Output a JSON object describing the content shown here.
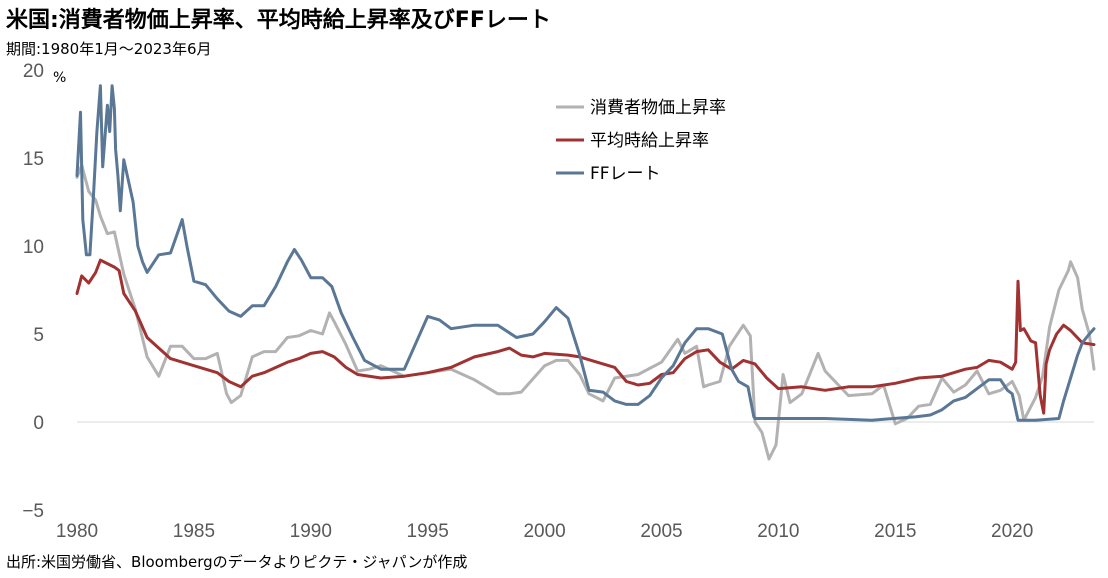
{
  "title": "米国:消費者物価上昇率、平均時給上昇率及びFFレート",
  "subtitle": "期間:1980年1月〜2023年6月",
  "source": "出所:米国労働省、Bloombergのデータよりピクテ・ジャパンが作成",
  "colors": {
    "cpi": "#b2b2b2",
    "wage": "#a03232",
    "ff": "#5a7796",
    "negative_tick": "#cc0000",
    "zero_line": "#d9d9d9"
  },
  "chart_data": {
    "type": "line",
    "ylabel": "%",
    "ylim": [
      -5,
      20
    ],
    "xlim": [
      1980,
      2023.5
    ],
    "yticks": [
      {
        "value": 20,
        "label": "20"
      },
      {
        "value": 15,
        "label": "15"
      },
      {
        "value": 10,
        "label": "10"
      },
      {
        "value": 5,
        "label": "5"
      },
      {
        "value": 0,
        "label": "0"
      },
      {
        "value": -5,
        "label": "−5"
      }
    ],
    "xticks": [
      {
        "value": 1980,
        "label": "1980"
      },
      {
        "value": 1985,
        "label": "1985"
      },
      {
        "value": 1990,
        "label": "1990"
      },
      {
        "value": 1995,
        "label": "1995"
      },
      {
        "value": 2000,
        "label": "2000"
      },
      {
        "value": 2005,
        "label": "2005"
      },
      {
        "value": 2010,
        "label": "2010"
      },
      {
        "value": 2015,
        "label": "2015"
      },
      {
        "value": 2020,
        "label": "2020"
      }
    ],
    "grid": false,
    "legend_position": "top-right",
    "series": [
      {
        "key": "cpi",
        "name": "消費者物価上昇率",
        "x": [
          1980.0,
          1980.2,
          1980.5,
          1980.8,
          1981.0,
          1981.3,
          1981.6,
          1982.0,
          1982.5,
          1983.0,
          1983.5,
          1984.0,
          1984.5,
          1985.0,
          1985.5,
          1986.0,
          1986.4,
          1986.6,
          1987.0,
          1987.5,
          1988.0,
          1988.5,
          1989.0,
          1989.5,
          1990.0,
          1990.5,
          1990.8,
          1991.0,
          1991.5,
          1992.0,
          1992.5,
          1993.0,
          1994.0,
          1995.0,
          1996.0,
          1997.0,
          1998.0,
          1998.5,
          1999.0,
          2000.0,
          2000.5,
          2001.0,
          2001.5,
          2001.9,
          2002.5,
          2003.0,
          2004.0,
          2005.0,
          2005.7,
          2006.0,
          2006.5,
          2006.8,
          2007.0,
          2007.5,
          2007.9,
          2008.5,
          2008.8,
          2009.0,
          2009.3,
          2009.6,
          2009.9,
          2010.2,
          2010.5,
          2011.0,
          2011.7,
          2012.0,
          2013.0,
          2014.0,
          2014.5,
          2015.0,
          2015.5,
          2016.0,
          2016.5,
          2017.0,
          2017.5,
          2018.0,
          2018.5,
          2019.0,
          2019.5,
          2020.0,
          2020.3,
          2020.5,
          2021.0,
          2021.3,
          2021.6,
          2022.0,
          2022.4,
          2022.5,
          2022.8,
          2023.0,
          2023.3,
          2023.5
        ],
        "y": [
          13.9,
          14.6,
          13.1,
          12.6,
          11.7,
          10.7,
          10.8,
          8.4,
          6.4,
          3.7,
          2.6,
          4.3,
          4.3,
          3.6,
          3.6,
          3.9,
          1.6,
          1.1,
          1.5,
          3.7,
          4.0,
          4.0,
          4.8,
          4.9,
          5.2,
          5.0,
          6.2,
          5.7,
          4.4,
          2.9,
          3.0,
          3.2,
          2.6,
          2.8,
          3.0,
          2.4,
          1.6,
          1.6,
          1.7,
          3.2,
          3.5,
          3.5,
          2.7,
          1.6,
          1.2,
          2.5,
          2.7,
          3.4,
          4.7,
          3.9,
          4.3,
          2.0,
          2.1,
          2.3,
          4.3,
          5.5,
          4.9,
          0.0,
          -0.6,
          -2.1,
          -1.3,
          2.7,
          1.1,
          1.6,
          3.9,
          2.9,
          1.5,
          1.6,
          2.1,
          -0.1,
          0.2,
          0.9,
          1.0,
          2.5,
          1.7,
          2.1,
          2.9,
          1.6,
          1.8,
          2.3,
          1.5,
          0.1,
          1.4,
          2.6,
          5.4,
          7.5,
          8.6,
          9.1,
          8.2,
          6.4,
          5.0,
          3.0
        ]
      },
      {
        "key": "wage",
        "name": "平均時給上昇率",
        "x": [
          1980.0,
          1980.2,
          1980.5,
          1980.8,
          1981.0,
          1981.3,
          1981.6,
          1981.8,
          1982.0,
          1982.5,
          1983.0,
          1983.5,
          1984.0,
          1985.0,
          1985.5,
          1986.0,
          1986.5,
          1987.0,
          1987.5,
          1988.0,
          1989.0,
          1989.5,
          1990.0,
          1990.5,
          1991.0,
          1991.5,
          1992.0,
          1993.0,
          1994.0,
          1995.0,
          1996.0,
          1997.0,
          1998.0,
          1998.5,
          1999.0,
          1999.5,
          2000.0,
          2001.0,
          2001.5,
          2002.0,
          2003.0,
          2003.5,
          2004.0,
          2004.5,
          2005.0,
          2005.5,
          2006.0,
          2006.5,
          2007.0,
          2007.5,
          2008.0,
          2008.5,
          2009.0,
          2009.5,
          2010.0,
          2011.0,
          2012.0,
          2013.0,
          2014.0,
          2015.0,
          2016.0,
          2017.0,
          2018.0,
          2018.5,
          2019.0,
          2019.5,
          2020.0,
          2020.15,
          2020.25,
          2020.35,
          2020.5,
          2020.8,
          2021.0,
          2021.2,
          2021.35,
          2021.45,
          2021.6,
          2021.9,
          2022.2,
          2022.5,
          2023.0,
          2023.5
        ],
        "y": [
          7.3,
          8.3,
          7.9,
          8.5,
          9.2,
          9.0,
          8.8,
          8.6,
          7.3,
          6.3,
          4.8,
          4.2,
          3.6,
          3.2,
          3.0,
          2.8,
          2.3,
          2.0,
          2.6,
          2.8,
          3.4,
          3.6,
          3.9,
          4.0,
          3.7,
          3.1,
          2.7,
          2.5,
          2.6,
          2.8,
          3.1,
          3.7,
          4.0,
          4.2,
          3.8,
          3.7,
          3.9,
          3.8,
          3.7,
          3.5,
          3.1,
          2.3,
          2.1,
          2.2,
          2.7,
          2.8,
          3.6,
          4.0,
          4.1,
          3.4,
          3.0,
          3.5,
          3.3,
          2.5,
          1.9,
          2.0,
          1.8,
          2.0,
          2.0,
          2.2,
          2.5,
          2.6,
          3.0,
          3.1,
          3.5,
          3.4,
          3.0,
          3.4,
          8.0,
          5.2,
          5.3,
          4.6,
          4.5,
          1.5,
          0.5,
          3.3,
          4.1,
          5.0,
          5.5,
          5.2,
          4.5,
          4.4
        ]
      },
      {
        "key": "ff",
        "name": "FFレート",
        "x": [
          1980.0,
          1980.15,
          1980.25,
          1980.4,
          1980.55,
          1980.7,
          1980.85,
          1981.0,
          1981.1,
          1981.3,
          1981.4,
          1981.5,
          1981.6,
          1981.65,
          1981.75,
          1981.85,
          1982.0,
          1982.4,
          1982.6,
          1982.8,
          1983.0,
          1983.5,
          1984.0,
          1984.5,
          1984.7,
          1985.0,
          1985.5,
          1986.0,
          1986.5,
          1987.0,
          1987.5,
          1988.0,
          1988.5,
          1989.0,
          1989.3,
          1989.6,
          1990.0,
          1990.5,
          1990.9,
          1991.3,
          1991.8,
          1992.3,
          1993.0,
          1994.0,
          1994.5,
          1995.0,
          1995.5,
          1996.0,
          1997.0,
          1998.0,
          1998.8,
          1999.5,
          2000.0,
          2000.5,
          2001.0,
          2001.5,
          2001.9,
          2002.5,
          2003.0,
          2003.5,
          2004.0,
          2004.5,
          2005.0,
          2005.5,
          2006.0,
          2006.5,
          2007.0,
          2007.6,
          2008.0,
          2008.3,
          2008.7,
          2008.95,
          2009.0,
          2010.0,
          2012.0,
          2014.0,
          2015.9,
          2016.5,
          2017.0,
          2017.5,
          2018.0,
          2018.5,
          2019.0,
          2019.5,
          2019.8,
          2020.0,
          2020.15,
          2020.25,
          2021.0,
          2022.0,
          2022.2,
          2022.5,
          2022.8,
          2023.0,
          2023.3,
          2023.5
        ],
        "y": [
          14.0,
          17.6,
          11.5,
          9.5,
          9.5,
          12.8,
          16.5,
          19.1,
          14.5,
          18.0,
          16.5,
          19.1,
          17.8,
          15.5,
          14.0,
          12.0,
          14.9,
          12.5,
          10.0,
          9.1,
          8.5,
          9.5,
          9.6,
          11.5,
          10.0,
          8.0,
          7.8,
          7.0,
          6.3,
          6.0,
          6.6,
          6.6,
          7.7,
          9.1,
          9.8,
          9.2,
          8.2,
          8.2,
          7.7,
          6.2,
          4.8,
          3.5,
          3.0,
          3.0,
          4.5,
          6.0,
          5.8,
          5.3,
          5.5,
          5.5,
          4.8,
          5.0,
          5.7,
          6.5,
          5.9,
          3.8,
          1.8,
          1.7,
          1.2,
          1.0,
          1.0,
          1.5,
          2.5,
          3.2,
          4.5,
          5.3,
          5.3,
          5.0,
          3.0,
          2.3,
          2.0,
          0.3,
          0.2,
          0.2,
          0.2,
          0.1,
          0.3,
          0.4,
          0.7,
          1.2,
          1.4,
          1.9,
          2.4,
          2.4,
          1.8,
          1.6,
          0.7,
          0.1,
          0.1,
          0.2,
          1.2,
          2.5,
          3.8,
          4.5,
          5.0,
          5.3
        ]
      }
    ]
  }
}
